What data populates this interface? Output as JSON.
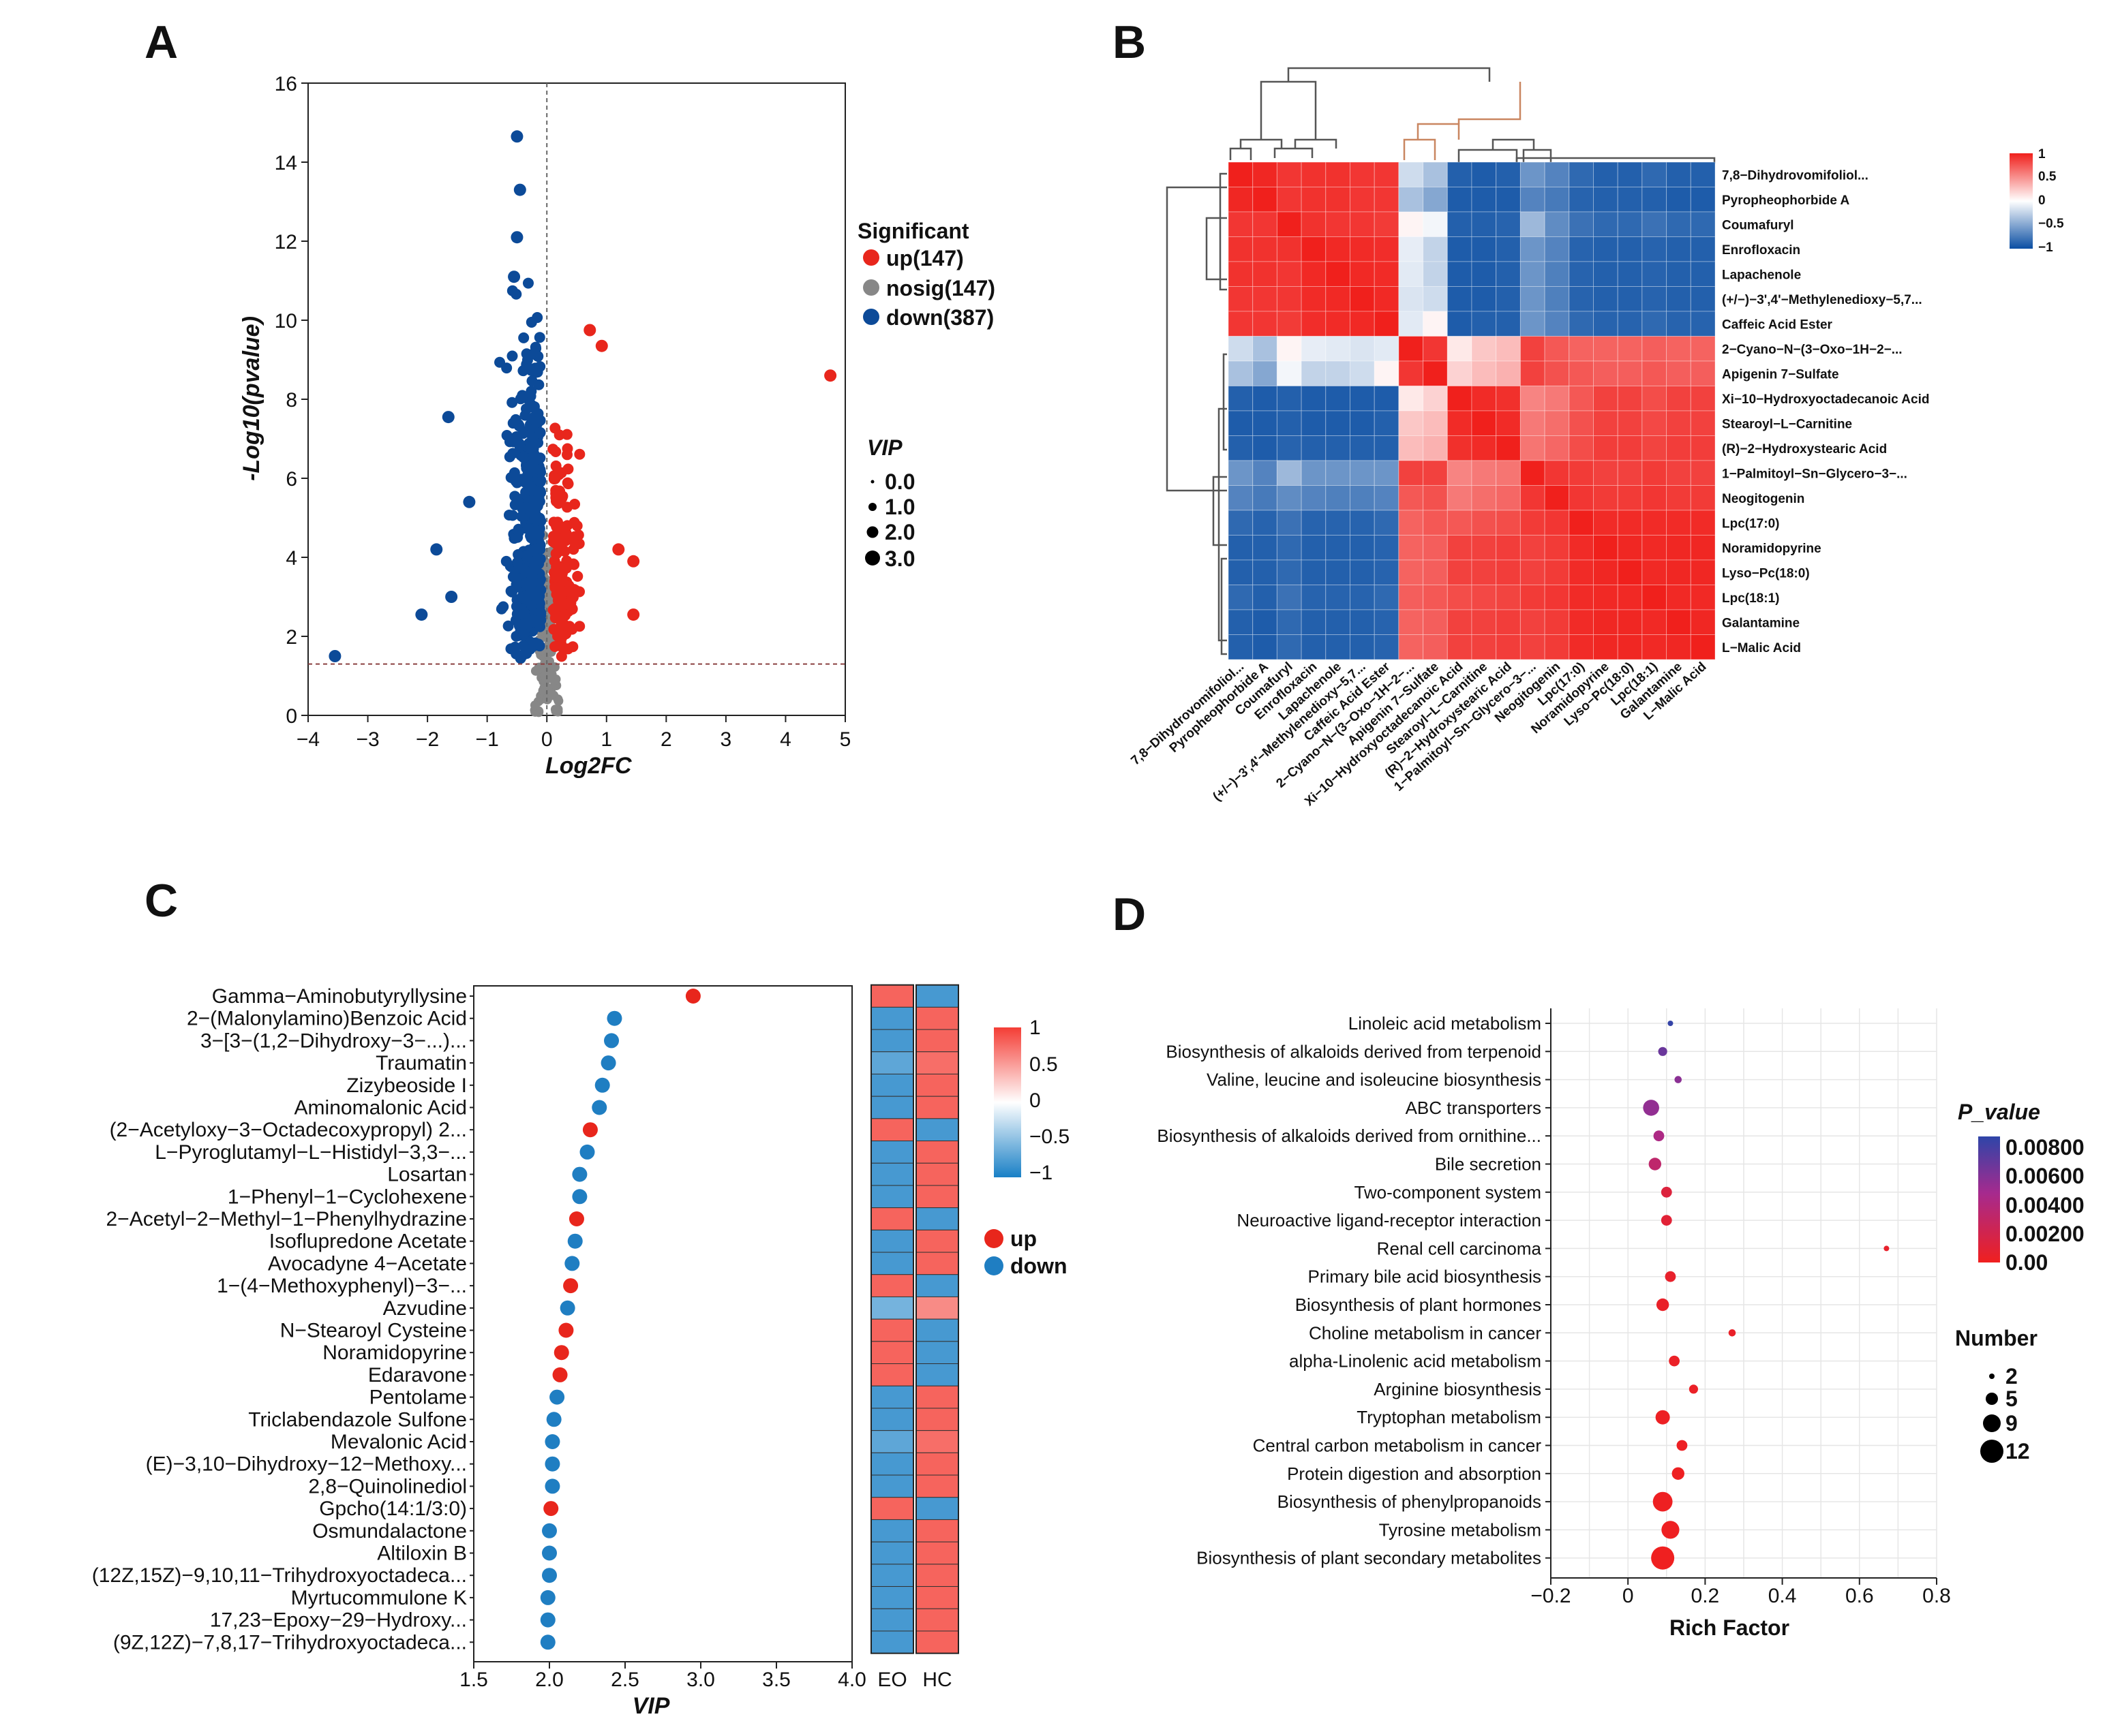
{
  "panels": {
    "a": "A",
    "b": "B",
    "c": "C",
    "d": "D"
  },
  "colors": {
    "up": "#e8261c",
    "nosig": "#878787",
    "down": "#0c4a98",
    "up_c": "#e8261c",
    "down_c": "#1f7ec2"
  },
  "chart_data": [
    {
      "id": "A",
      "type": "scatter",
      "title": "",
      "xlabel": "Log2FC",
      "ylabel": "-Log10(pvalue)",
      "xlim": [
        -4,
        5
      ],
      "ylim": [
        0,
        16
      ],
      "xticks": [
        "−4",
        "−3",
        "−2",
        "−1",
        "0",
        "1",
        "2",
        "3",
        "4",
        "5"
      ],
      "yticks": [
        "0",
        "2",
        "4",
        "6",
        "8",
        "10",
        "12",
        "14",
        "16"
      ],
      "thresholds": {
        "x": 0,
        "y": 1.3
      },
      "legend": {
        "title": "Significant",
        "items": [
          "up(147)",
          "nosig(147)",
          "down(387)"
        ],
        "size_title": "VIP",
        "size_items": [
          "0.0",
          "1.0",
          "2.0",
          "3.0"
        ]
      },
      "counts": {
        "up": 147,
        "nosig": 147,
        "down": 387
      },
      "highlight_points": [
        {
          "x": 4.75,
          "y": 8.6,
          "group": "up"
        },
        {
          "x": 0.72,
          "y": 9.75,
          "group": "up"
        },
        {
          "x": 0.92,
          "y": 9.35,
          "group": "up"
        },
        {
          "x": 1.2,
          "y": 4.2,
          "group": "up"
        },
        {
          "x": 1.45,
          "y": 3.9,
          "group": "up"
        },
        {
          "x": 1.45,
          "y": 2.55,
          "group": "up"
        },
        {
          "x": -3.55,
          "y": 1.5,
          "group": "down"
        },
        {
          "x": -2.1,
          "y": 2.55,
          "group": "down"
        },
        {
          "x": -1.85,
          "y": 4.2,
          "group": "down"
        },
        {
          "x": -1.6,
          "y": 3.0,
          "group": "down"
        },
        {
          "x": -1.65,
          "y": 7.55,
          "group": "down"
        },
        {
          "x": -1.3,
          "y": 5.4,
          "group": "down"
        },
        {
          "x": -0.5,
          "y": 14.65,
          "group": "down"
        },
        {
          "x": -0.45,
          "y": 13.3,
          "group": "down"
        },
        {
          "x": -0.5,
          "y": 12.1,
          "group": "down"
        },
        {
          "x": -0.55,
          "y": 11.1,
          "group": "down"
        }
      ]
    },
    {
      "id": "B",
      "type": "heatmap",
      "labels": [
        "7,8−Dihydrovomifoliol...",
        "Pyropheophorbide A",
        "Coumafuryl",
        "Enrofloxacin",
        "Lapachenole",
        "(+/−)−3',4'−Methylenedioxy−5,7...",
        "Caffeic Acid Ester",
        "2−Cyano−N−(3−Oxo−1H−2−...",
        "Apigenin 7−Sulfate",
        "Xi−10−Hydroxyoctadecanoic Acid",
        "Stearoyl−L−Carnitine",
        "(R)−2−Hydroxystearic Acid",
        "1−Palmitoyl−Sn−Glycero−3−...",
        "Neogitogenin",
        "Lpc(17:0)",
        "Noramidopyrine",
        "Lyso−Pc(18:0)",
        "Lpc(18:1)",
        "Galantamine",
        "L−Malic Acid"
      ],
      "col_labels": [
        "7,8−Dihydrovomifoliol...",
        "Pyropheophorbide A",
        "Coumafuryl",
        "Enrofloxacin",
        "Lapachenole",
        "(+/−)−3',4'−Methylenedioxy−5,7...",
        "Caffeic Acid Ester",
        "2−Cyano−N−(3−Oxo−1H−2−...",
        "Apigenin 7−Sulfate",
        "Xi−10−Hydroxyoctadecanoic Acid",
        "Stearoyl−L−Carnitine",
        "(R)−2−Hydroxystearic Acid",
        "1−Palmitoyl−Sn−Glycero−3−...",
        "Neogitogenin",
        "Lpc(17:0)",
        "Noramidopyrine",
        "Lyso−Pc(18:0)",
        "Lpc(18:1)",
        "Galantamine",
        "L−Malic Acid"
      ],
      "legend_ticks": [
        "1",
        "0.5",
        "0",
        "−0.5",
        "−1"
      ],
      "values": [
        [
          1,
          0.97,
          0.9,
          0.92,
          0.92,
          0.9,
          0.9,
          -0.2,
          -0.35,
          -0.9,
          -0.92,
          -0.9,
          -0.6,
          -0.7,
          -0.85,
          -0.9,
          -0.9,
          -0.85,
          -0.9,
          -0.9
        ],
        [
          0.97,
          1,
          0.9,
          0.92,
          0.92,
          0.9,
          0.9,
          -0.35,
          -0.5,
          -0.92,
          -0.92,
          -0.92,
          -0.7,
          -0.75,
          -0.88,
          -0.9,
          -0.9,
          -0.9,
          -0.92,
          -0.92
        ],
        [
          0.9,
          0.9,
          1,
          0.92,
          0.9,
          0.9,
          0.88,
          0.05,
          -0.05,
          -0.9,
          -0.9,
          -0.88,
          -0.4,
          -0.65,
          -0.8,
          -0.85,
          -0.85,
          -0.8,
          -0.85,
          -0.85
        ],
        [
          0.92,
          0.92,
          0.92,
          1,
          0.96,
          0.95,
          0.94,
          -0.1,
          -0.25,
          -0.92,
          -0.92,
          -0.9,
          -0.6,
          -0.7,
          -0.88,
          -0.9,
          -0.9,
          -0.88,
          -0.9,
          -0.9
        ],
        [
          0.92,
          0.92,
          0.9,
          0.96,
          1,
          0.96,
          0.95,
          -0.12,
          -0.25,
          -0.92,
          -0.92,
          -0.9,
          -0.6,
          -0.72,
          -0.88,
          -0.9,
          -0.9,
          -0.88,
          -0.9,
          -0.9
        ],
        [
          0.9,
          0.9,
          0.9,
          0.95,
          0.96,
          1,
          0.96,
          -0.15,
          -0.2,
          -0.92,
          -0.92,
          -0.9,
          -0.6,
          -0.72,
          -0.88,
          -0.9,
          -0.9,
          -0.88,
          -0.9,
          -0.9
        ],
        [
          0.9,
          0.9,
          0.88,
          0.94,
          0.95,
          0.96,
          1,
          -0.12,
          0.05,
          -0.92,
          -0.9,
          -0.9,
          -0.6,
          -0.7,
          -0.85,
          -0.88,
          -0.88,
          -0.85,
          -0.88,
          -0.88
        ],
        [
          -0.2,
          -0.35,
          0.05,
          -0.1,
          -0.12,
          -0.15,
          -0.12,
          1,
          0.9,
          0.1,
          0.25,
          0.3,
          0.85,
          0.75,
          0.7,
          0.7,
          0.7,
          0.72,
          0.7,
          0.7
        ],
        [
          -0.35,
          -0.5,
          -0.05,
          -0.25,
          -0.25,
          -0.2,
          0.05,
          0.9,
          1,
          0.2,
          0.3,
          0.35,
          0.85,
          0.78,
          0.75,
          0.72,
          0.72,
          0.75,
          0.72,
          0.72
        ],
        [
          -0.9,
          -0.92,
          -0.9,
          -0.92,
          -0.92,
          -0.92,
          -0.92,
          0.1,
          0.2,
          1,
          0.95,
          0.93,
          0.55,
          0.6,
          0.75,
          0.85,
          0.85,
          0.8,
          0.85,
          0.85
        ],
        [
          -0.92,
          -0.92,
          -0.9,
          -0.92,
          -0.92,
          -0.92,
          -0.9,
          0.25,
          0.3,
          0.95,
          1,
          0.95,
          0.6,
          0.65,
          0.78,
          0.85,
          0.85,
          0.82,
          0.85,
          0.85
        ],
        [
          -0.9,
          -0.92,
          -0.88,
          -0.9,
          -0.9,
          -0.9,
          -0.9,
          0.3,
          0.35,
          0.93,
          0.95,
          1,
          0.62,
          0.68,
          0.8,
          0.87,
          0.87,
          0.84,
          0.87,
          0.87
        ],
        [
          -0.6,
          -0.7,
          -0.4,
          -0.6,
          -0.6,
          -0.6,
          -0.6,
          0.85,
          0.85,
          0.55,
          0.6,
          0.62,
          1,
          0.9,
          0.88,
          0.85,
          0.85,
          0.88,
          0.85,
          0.85
        ],
        [
          -0.7,
          -0.75,
          -0.65,
          -0.7,
          -0.72,
          -0.72,
          -0.7,
          0.75,
          0.78,
          0.6,
          0.65,
          0.68,
          0.9,
          1,
          0.9,
          0.88,
          0.88,
          0.9,
          0.88,
          0.88
        ],
        [
          -0.85,
          -0.88,
          -0.8,
          -0.88,
          -0.88,
          -0.88,
          -0.85,
          0.7,
          0.75,
          0.75,
          0.78,
          0.8,
          0.88,
          0.9,
          1,
          0.95,
          0.95,
          0.95,
          0.95,
          0.95
        ],
        [
          -0.9,
          -0.9,
          -0.85,
          -0.9,
          -0.9,
          -0.9,
          -0.88,
          0.7,
          0.72,
          0.85,
          0.85,
          0.87,
          0.85,
          0.88,
          0.95,
          1,
          0.97,
          0.96,
          0.97,
          0.97
        ],
        [
          -0.9,
          -0.9,
          -0.85,
          -0.9,
          -0.9,
          -0.9,
          -0.88,
          0.7,
          0.72,
          0.85,
          0.85,
          0.87,
          0.85,
          0.88,
          0.95,
          0.97,
          1,
          0.96,
          0.97,
          0.97
        ],
        [
          -0.85,
          -0.9,
          -0.8,
          -0.88,
          -0.88,
          -0.88,
          -0.85,
          0.72,
          0.75,
          0.8,
          0.82,
          0.84,
          0.88,
          0.9,
          0.95,
          0.96,
          0.96,
          1,
          0.96,
          0.96
        ],
        [
          -0.9,
          -0.92,
          -0.85,
          -0.9,
          -0.9,
          -0.9,
          -0.88,
          0.7,
          0.72,
          0.85,
          0.85,
          0.87,
          0.85,
          0.88,
          0.95,
          0.97,
          0.97,
          0.96,
          1,
          0.97
        ],
        [
          -0.9,
          -0.92,
          -0.85,
          -0.9,
          -0.9,
          -0.9,
          -0.88,
          0.7,
          0.72,
          0.85,
          0.85,
          0.87,
          0.85,
          0.88,
          0.95,
          0.97,
          0.97,
          0.96,
          0.97,
          1
        ]
      ]
    },
    {
      "id": "C",
      "type": "scatter",
      "xlabel": "VIP",
      "xlim": [
        1.5,
        4.0
      ],
      "xticks": [
        "1.5",
        "2.0",
        "2.5",
        "3.0",
        "3.5",
        "4.0"
      ],
      "legend": {
        "items": [
          "up",
          "down"
        ],
        "ticks": [
          "1",
          "0.5",
          "0",
          "−0.5",
          "−1"
        ]
      },
      "heat_columns": [
        "EO",
        "HC"
      ],
      "metabolites": [
        {
          "name": "Gamma−Aminobutyryllysine",
          "vip": 2.95,
          "dir": "up",
          "eo": 0.8,
          "hc": -0.8
        },
        {
          "name": "2−(Malonylamino)Benzoic Acid",
          "vip": 2.43,
          "dir": "down",
          "eo": -0.8,
          "hc": 0.8
        },
        {
          "name": "3−[3−(1,2−Dihydroxy−3−...)...",
          "vip": 2.41,
          "dir": "down",
          "eo": -0.8,
          "hc": 0.8
        },
        {
          "name": "Traumatin",
          "vip": 2.39,
          "dir": "down",
          "eo": -0.7,
          "hc": 0.75
        },
        {
          "name": "Zizybeoside I",
          "vip": 2.35,
          "dir": "down",
          "eo": -0.8,
          "hc": 0.8
        },
        {
          "name": "Aminomalonic Acid",
          "vip": 2.33,
          "dir": "down",
          "eo": -0.8,
          "hc": 0.8
        },
        {
          "name": "(2−Acetyloxy−3−Octadecoxypropyl) 2...",
          "vip": 2.27,
          "dir": "up",
          "eo": 0.8,
          "hc": -0.8
        },
        {
          "name": "L−Pyroglutamyl−L−Histidyl−3,3−...",
          "vip": 2.25,
          "dir": "down",
          "eo": -0.8,
          "hc": 0.8
        },
        {
          "name": "Losartan",
          "vip": 2.2,
          "dir": "down",
          "eo": -0.8,
          "hc": 0.8
        },
        {
          "name": "1−Phenyl−1−Cyclohexene",
          "vip": 2.2,
          "dir": "down",
          "eo": -0.8,
          "hc": 0.8
        },
        {
          "name": "2−Acetyl−2−Methyl−1−Phenylhydrazine",
          "vip": 2.18,
          "dir": "up",
          "eo": 0.8,
          "hc": -0.8
        },
        {
          "name": "Isoflupredone Acetate",
          "vip": 2.17,
          "dir": "down",
          "eo": -0.8,
          "hc": 0.8
        },
        {
          "name": "Avocadyne 4−Acetate",
          "vip": 2.15,
          "dir": "down",
          "eo": -0.8,
          "hc": 0.8
        },
        {
          "name": "1−(4−Methoxyphenyl)−3−...",
          "vip": 2.14,
          "dir": "up",
          "eo": 0.8,
          "hc": -0.8
        },
        {
          "name": "Azvudine",
          "vip": 2.12,
          "dir": "down",
          "eo": -0.6,
          "hc": 0.6
        },
        {
          "name": "N−Stearoyl Cysteine",
          "vip": 2.11,
          "dir": "up",
          "eo": 0.8,
          "hc": -0.8
        },
        {
          "name": "Noramidopyrine",
          "vip": 2.08,
          "dir": "up",
          "eo": 0.8,
          "hc": -0.8
        },
        {
          "name": "Edaravone",
          "vip": 2.07,
          "dir": "up",
          "eo": 0.8,
          "hc": -0.8
        },
        {
          "name": "Pentolame",
          "vip": 2.05,
          "dir": "down",
          "eo": -0.8,
          "hc": 0.8
        },
        {
          "name": "Triclabendazole Sulfone",
          "vip": 2.03,
          "dir": "down",
          "eo": -0.8,
          "hc": 0.8
        },
        {
          "name": "Mevalonic Acid",
          "vip": 2.02,
          "dir": "down",
          "eo": -0.7,
          "hc": 0.75
        },
        {
          "name": "(E)−3,10−Dihydroxy−12−Methoxy...",
          "vip": 2.02,
          "dir": "down",
          "eo": -0.8,
          "hc": 0.8
        },
        {
          "name": "2,8−Quinolinediol",
          "vip": 2.02,
          "dir": "down",
          "eo": -0.8,
          "hc": 0.8
        },
        {
          "name": "Gpcho(14:1/3:0)",
          "vip": 2.01,
          "dir": "up",
          "eo": 0.8,
          "hc": -0.8
        },
        {
          "name": "Osmundalactone",
          "vip": 2.0,
          "dir": "down",
          "eo": -0.8,
          "hc": 0.8
        },
        {
          "name": "Altiloxin B",
          "vip": 2.0,
          "dir": "down",
          "eo": -0.8,
          "hc": 0.8
        },
        {
          "name": "(12Z,15Z)−9,10,11−Trihydroxyoctadeca...",
          "vip": 2.0,
          "dir": "down",
          "eo": -0.8,
          "hc": 0.8
        },
        {
          "name": "Myrtucommulone K",
          "vip": 1.99,
          "dir": "down",
          "eo": -0.8,
          "hc": 0.8
        },
        {
          "name": "17,23−Epoxy−29−Hydroxy...",
          "vip": 1.99,
          "dir": "down",
          "eo": -0.8,
          "hc": 0.8
        },
        {
          "name": "(9Z,12Z)−7,8,17−Trihydroxyoctadeca...",
          "vip": 1.99,
          "dir": "down",
          "eo": -0.8,
          "hc": 0.8
        }
      ]
    },
    {
      "id": "D",
      "type": "scatter",
      "xlabel": "Rich Factor",
      "xlim": [
        -0.2,
        0.8
      ],
      "xticks": [
        "−0.2",
        "0",
        "0.2",
        "0.4",
        "0.6",
        "0.8"
      ],
      "legend": {
        "title": "P_value",
        "ticks": [
          "0.00800",
          "0.00600",
          "0.00400",
          "0.00200",
          "0.00"
        ],
        "size_title": "Number",
        "size_items": [
          "2",
          "5",
          "9",
          "12"
        ]
      },
      "pathways": [
        {
          "name": "Linoleic acid metabolism",
          "rich": 0.11,
          "p": 0.0078,
          "n": 2
        },
        {
          "name": "Biosynthesis of alkaloids derived from terpenoid",
          "rich": 0.09,
          "p": 0.0062,
          "n": 4
        },
        {
          "name": "Valine, leucine and isoleucine biosynthesis",
          "rich": 0.13,
          "p": 0.0052,
          "n": 3
        },
        {
          "name": "ABC transporters",
          "rich": 0.06,
          "p": 0.005,
          "n": 8
        },
        {
          "name": "Biosynthesis of alkaloids derived from ornithine...",
          "rich": 0.08,
          "p": 0.004,
          "n": 5
        },
        {
          "name": "Bile secretion",
          "rich": 0.07,
          "p": 0.003,
          "n": 6
        },
        {
          "name": "Two-component system",
          "rich": 0.1,
          "p": 0.0012,
          "n": 5
        },
        {
          "name": "Neuroactive ligand-receptor interaction",
          "rich": 0.1,
          "p": 0.0009,
          "n": 5
        },
        {
          "name": "Renal cell carcinoma",
          "rich": 0.67,
          "p": 0.0005,
          "n": 2
        },
        {
          "name": "Primary bile acid biosynthesis",
          "rich": 0.11,
          "p": 0.0005,
          "n": 5
        },
        {
          "name": "Biosynthesis of plant hormones",
          "rich": 0.09,
          "p": 0.0004,
          "n": 6
        },
        {
          "name": "Choline metabolism in cancer",
          "rich": 0.27,
          "p": 0.0004,
          "n": 3
        },
        {
          "name": "alpha-Linolenic acid metabolism",
          "rich": 0.12,
          "p": 0.0003,
          "n": 5
        },
        {
          "name": "Arginine biosynthesis",
          "rich": 0.17,
          "p": 0.0003,
          "n": 4
        },
        {
          "name": "Tryptophan metabolism",
          "rich": 0.09,
          "p": 0.0002,
          "n": 7
        },
        {
          "name": "Central carbon metabolism in cancer",
          "rich": 0.14,
          "p": 0.0002,
          "n": 5
        },
        {
          "name": "Protein digestion and absorption",
          "rich": 0.13,
          "p": 0.0001,
          "n": 6
        },
        {
          "name": "Biosynthesis of phenylpropanoids",
          "rich": 0.09,
          "p": 0.0001,
          "n": 10
        },
        {
          "name": "Tyrosine metabolism",
          "rich": 0.11,
          "p": 0.0001,
          "n": 9
        },
        {
          "name": "Biosynthesis of plant secondary metabolites",
          "rich": 0.09,
          "p": 5e-05,
          "n": 12
        }
      ]
    }
  ]
}
